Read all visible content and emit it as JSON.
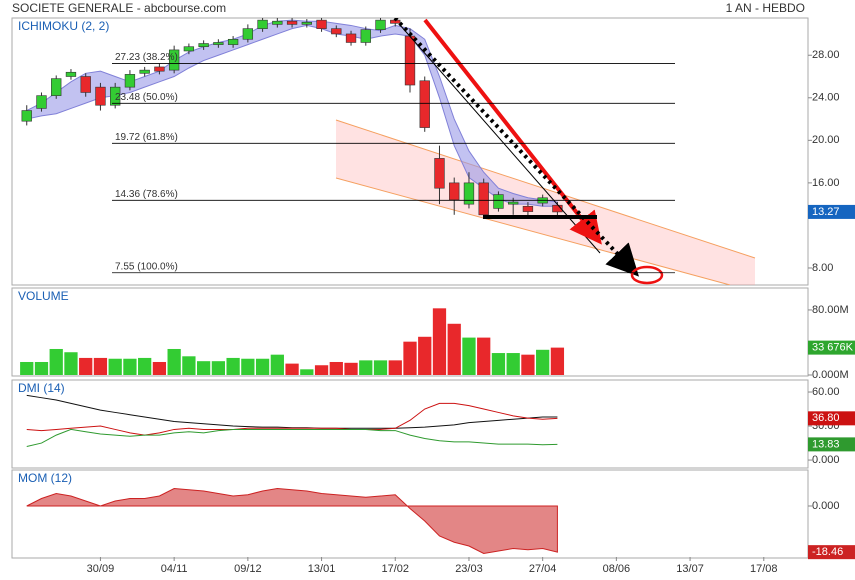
{
  "header": {
    "title": "SOCIETE GENERALE - abcbourse.com",
    "period": "1 AN - HEBDO"
  },
  "chart_data": [
    {
      "type": "candlestick",
      "title": "ICHIMOKU (2, 2)",
      "x": [
        0,
        1,
        2,
        3,
        4,
        5,
        6,
        7,
        8,
        9,
        10,
        11,
        12,
        13,
        14,
        15,
        16,
        17,
        18,
        19,
        20,
        21,
        22,
        23,
        24,
        25,
        26,
        27,
        28,
        29,
        30,
        31,
        32,
        33,
        34,
        35,
        36
      ],
      "open": [
        21.8,
        23.0,
        24.2,
        26.0,
        26.0,
        25.0,
        23.3,
        25.0,
        26.3,
        26.9,
        26.6,
        28.4,
        28.8,
        29.0,
        29.0,
        29.5,
        30.5,
        30.9,
        31.2,
        30.9,
        31.3,
        30.5,
        30.0,
        29.2,
        30.4,
        31.3,
        29.8,
        25.6,
        18.3,
        16.0,
        14.0,
        16.0,
        13.6,
        14.0,
        13.8,
        14.1,
        13.9
      ],
      "high": [
        23.3,
        24.5,
        26.1,
        26.7,
        26.3,
        25.4,
        25.4,
        26.6,
        26.9,
        27.2,
        28.9,
        29.1,
        29.4,
        29.5,
        29.8,
        30.9,
        31.6,
        31.5,
        31.5,
        31.4,
        31.6,
        30.8,
        30.3,
        30.7,
        31.6,
        31.5,
        30.5,
        26.0,
        19.5,
        16.5,
        17.0,
        16.4,
        15.2,
        14.6,
        14.2,
        14.9,
        14.2
      ],
      "low": [
        21.4,
        22.7,
        23.9,
        25.7,
        24.1,
        22.8,
        23.0,
        24.7,
        26.0,
        26.2,
        26.3,
        28.1,
        28.5,
        28.7,
        28.7,
        29.2,
        30.2,
        30.6,
        30.6,
        30.6,
        30.2,
        29.7,
        28.9,
        28.9,
        30.1,
        30.7,
        24.5,
        20.8,
        14.0,
        13.0,
        13.6,
        12.8,
        13.3,
        13.0,
        12.9,
        13.8,
        12.9
      ],
      "close": [
        22.8,
        24.2,
        25.8,
        26.4,
        24.5,
        23.3,
        25.0,
        26.2,
        26.6,
        26.5,
        28.5,
        28.8,
        29.1,
        29.2,
        29.5,
        30.5,
        31.3,
        31.2,
        30.9,
        31.1,
        30.5,
        30.0,
        29.2,
        30.4,
        31.3,
        31.0,
        25.2,
        21.2,
        15.5,
        14.4,
        16.0,
        13.0,
        14.9,
        14.2,
        13.3,
        14.6,
        13.27
      ],
      "cloud_upper": [
        22.8,
        23.5,
        24.5,
        25.5,
        26.3,
        26.5,
        26,
        25.5,
        26,
        26.5,
        27.5,
        28.3,
        28.8,
        29.2,
        29.5,
        30,
        30.8,
        31.2,
        31.3,
        31.2,
        31.2,
        31,
        30.8,
        30.5,
        30.3,
        30.8,
        30.5,
        29.5,
        26,
        22,
        19,
        17,
        15.5,
        15,
        14.6,
        14.4,
        14.2
      ],
      "cloud_lower": [
        22,
        22.3,
        22.5,
        23,
        23.5,
        24,
        24.2,
        24.5,
        25,
        25.5,
        26,
        26.8,
        27.5,
        28,
        28.5,
        29,
        29.5,
        30,
        30.5,
        30.8,
        30.5,
        30,
        29.8,
        29.5,
        29.8,
        30,
        29.8,
        28,
        24,
        19.5,
        16.5,
        15.5,
        14.5,
        14,
        14,
        13.8,
        13.8
      ],
      "fib_levels": [
        {
          "value": 27.23,
          "label": "27.23 (38.2%)"
        },
        {
          "value": 23.48,
          "label": "23.48 (50.0%)"
        },
        {
          "value": 19.72,
          "label": "19.72 (61.8%)"
        },
        {
          "value": 14.36,
          "label": "14.36 (78.6%)"
        },
        {
          "value": 7.55,
          "label": "7.55 (100.0%)"
        }
      ],
      "up_color": "#33cc33",
      "down_color": "#e8282b",
      "cloud_color": "#9a9ae8",
      "xlim": [
        -1,
        53
      ],
      "ylim": [
        6.4,
        31.5
      ],
      "yticks": [
        {
          "value": 28,
          "label": "28.00"
        },
        {
          "value": 24,
          "label": "24.00"
        },
        {
          "value": 20,
          "label": "20.00"
        },
        {
          "value": 16,
          "label": "16.00"
        },
        {
          "value": 8,
          "label": "8.00"
        }
      ]
    },
    {
      "type": "bar",
      "title": "VOLUME",
      "x": [
        0,
        1,
        2,
        3,
        4,
        5,
        6,
        7,
        8,
        9,
        10,
        11,
        12,
        13,
        14,
        15,
        16,
        17,
        18,
        19,
        20,
        21,
        22,
        23,
        24,
        25,
        26,
        27,
        28,
        29,
        30,
        31,
        32,
        33,
        34,
        35,
        36
      ],
      "values": [
        16,
        16,
        32,
        28,
        21,
        21,
        20,
        20,
        21,
        16,
        32,
        23,
        17,
        17,
        21,
        20,
        20,
        25,
        14,
        7,
        12,
        16,
        15,
        18,
        18,
        18,
        41,
        47,
        82,
        63,
        46,
        46,
        27,
        27,
        25,
        31,
        33.676
      ],
      "value_labels": [
        null,
        null,
        null,
        null,
        null,
        null,
        null,
        null,
        null,
        null,
        null,
        null,
        null,
        null,
        null,
        null,
        null,
        null,
        null,
        null,
        null,
        null,
        null,
        null,
        null,
        null,
        null,
        null,
        null,
        null,
        null,
        null,
        null,
        null,
        null,
        null,
        "33 676K"
      ],
      "xlim": [
        -1,
        53
      ],
      "ylim": [
        0,
        107
      ],
      "yticks": [
        {
          "value": 80,
          "label": "80.00M"
        },
        {
          "value": 0,
          "label": "0.000M"
        }
      ]
    },
    {
      "type": "line",
      "title": "DMI (14)",
      "x": [
        0,
        1,
        2,
        3,
        4,
        5,
        6,
        7,
        8,
        9,
        10,
        11,
        12,
        13,
        14,
        15,
        16,
        17,
        18,
        19,
        20,
        21,
        22,
        23,
        24,
        25,
        26,
        27,
        28,
        29,
        30,
        31,
        32,
        33,
        34,
        35,
        36
      ],
      "series": [
        {
          "color": "#111111",
          "values": [
            57,
            55,
            53,
            50,
            47,
            44,
            42,
            40,
            38,
            36,
            34,
            33,
            32,
            31,
            30,
            29.5,
            29,
            29,
            28.5,
            28.5,
            28,
            28,
            28,
            28,
            28,
            28,
            28.5,
            29,
            30,
            31,
            33,
            34,
            35,
            36,
            37,
            38,
            38
          ]
        },
        {
          "color": "#cc1111",
          "values": [
            27,
            26,
            27,
            28,
            29,
            30,
            27,
            24,
            22,
            24,
            27,
            28,
            27,
            27,
            27,
            28,
            28,
            28,
            28,
            28,
            28,
            28,
            27,
            27,
            27,
            28,
            35,
            45,
            50,
            50,
            48,
            45,
            42,
            39,
            37,
            36,
            36.8
          ],
          "value_labels": [
            null,
            null,
            null,
            null,
            null,
            null,
            null,
            null,
            null,
            null,
            null,
            null,
            null,
            null,
            null,
            null,
            null,
            null,
            null,
            null,
            null,
            null,
            null,
            null,
            null,
            null,
            null,
            null,
            null,
            null,
            null,
            null,
            null,
            null,
            null,
            null,
            "36.80"
          ]
        },
        {
          "color": "#2f9a2f",
          "values": [
            12,
            15,
            22,
            27,
            25,
            23,
            22,
            21,
            22,
            22,
            24,
            25,
            24,
            26,
            27,
            27,
            27,
            27,
            27,
            27,
            27,
            27,
            27,
            27,
            26,
            26,
            22,
            19,
            17,
            16,
            16,
            15,
            14,
            14,
            14,
            13.5,
            13.83
          ]
        }
      ],
      "xlim": [
        -1,
        53
      ],
      "ylim": [
        -7,
        70.6
      ],
      "yticks": [
        {
          "value": 60,
          "label": "60.00"
        },
        {
          "value": 30,
          "label": "30.00"
        },
        {
          "value": 0,
          "label": "0.000"
        }
      ]
    },
    {
      "type": "area",
      "title": "MOM (12)",
      "color": "#cc2222",
      "x": [
        0,
        1,
        2,
        3,
        4,
        5,
        6,
        7,
        8,
        9,
        10,
        11,
        12,
        13,
        14,
        15,
        16,
        17,
        18,
        19,
        20,
        21,
        22,
        23,
        24,
        25,
        26,
        27,
        28,
        29,
        30,
        31,
        32,
        33,
        34,
        35,
        36
      ],
      "values": [
        0,
        3,
        5,
        4,
        2,
        0,
        2,
        3,
        3,
        4,
        7,
        6.5,
        6,
        5,
        4,
        4.5,
        6,
        7,
        6.5,
        6,
        5,
        4.5,
        4,
        3.5,
        4,
        4.5,
        -1,
        -6,
        -12,
        -14.5,
        -16,
        -19,
        -18,
        -17,
        -17.5,
        -17,
        -18.46
      ],
      "xlim": [
        -1,
        53
      ],
      "ylim": [
        -20.4,
        14.4
      ],
      "yticks": [
        {
          "value": 0,
          "label": "0.000"
        }
      ],
      "xticks": [
        {
          "value": 5,
          "label": "30/09"
        },
        {
          "value": 10,
          "label": "04/11"
        },
        {
          "value": 15,
          "label": "09/12"
        },
        {
          "value": 20,
          "label": "13/01"
        },
        {
          "value": 25,
          "label": "17/02"
        },
        {
          "value": 30,
          "label": "23/03"
        },
        {
          "value": 35,
          "label": "27/04"
        },
        {
          "value": 40,
          "label": "08/06"
        },
        {
          "value": 45,
          "label": "13/07"
        },
        {
          "value": 50,
          "label": "17/08"
        }
      ]
    }
  ]
}
